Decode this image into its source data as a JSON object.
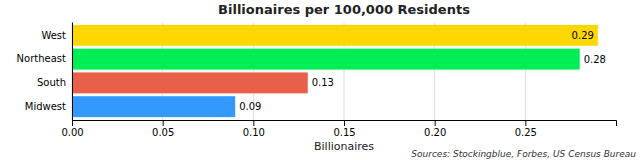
{
  "chart_data": {
    "type": "bar",
    "orientation": "horizontal",
    "title": "Billionaires per 100,000 Residents",
    "xlabel": "Billionaires",
    "annotations": [
      "Sources: Stockingblue, Forbes, US Census Bureau"
    ],
    "categories": [
      "Midwest",
      "South",
      "Northeast",
      "West"
    ],
    "values": [
      0.09,
      0.13,
      0.28,
      0.29
    ],
    "colors": [
      "#3399FF",
      "#E8604A",
      "#00EE55",
      "#FFD700"
    ],
    "xlim": [
      0,
      0.3
    ],
    "xticks": [
      {
        "value": 0.0,
        "label": "0.00"
      },
      0.05,
      {
        "value": 0.1,
        "label": "0.10"
      },
      0.15,
      {
        "value": 0.2,
        "label": "0.20"
      },
      0.25
    ],
    "grid": true,
    "data_labels": true
  }
}
